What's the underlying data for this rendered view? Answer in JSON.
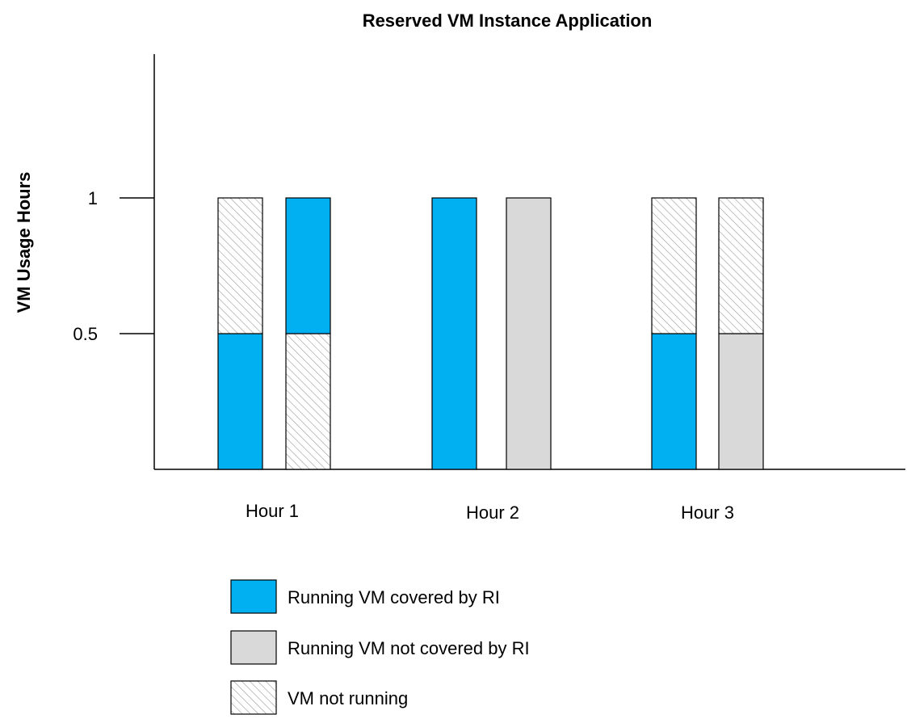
{
  "chart_data": {
    "type": "bar",
    "title": "Reserved VM Instance Application",
    "xlabel": "",
    "ylabel": "VM Usage Hours",
    "yticks": [
      1,
      0.5
    ],
    "ytick_labels": [
      "1",
      "0.5"
    ],
    "ylim": [
      0,
      1
    ],
    "categories": [
      "Hour 1",
      "Hour 2",
      "Hour 3"
    ],
    "states": {
      "covered": {
        "label": "Running VM covered by RI",
        "color": "#00B0F0",
        "pattern": "solid"
      },
      "uncovered": {
        "label": "Running VM not covered by RI",
        "color": "#D9D9D9",
        "pattern": "solid"
      },
      "not_running": {
        "label": "VM not running",
        "color": "#FFFFFF",
        "pattern": "hatch"
      }
    },
    "bars": [
      {
        "category": "Hour 1",
        "segments": [
          {
            "state": "covered",
            "value": 0.5
          },
          {
            "state": "not_running",
            "value": 0.5
          }
        ]
      },
      {
        "category": "Hour 1",
        "segments": [
          {
            "state": "not_running",
            "value": 0.5
          },
          {
            "state": "covered",
            "value": 0.5
          }
        ]
      },
      {
        "category": "Hour 2",
        "segments": [
          {
            "state": "covered",
            "value": 1
          }
        ]
      },
      {
        "category": "Hour 2",
        "segments": [
          {
            "state": "uncovered",
            "value": 1
          }
        ]
      },
      {
        "category": "Hour 3",
        "segments": [
          {
            "state": "covered",
            "value": 0.5
          },
          {
            "state": "not_running",
            "value": 0.5
          }
        ]
      },
      {
        "category": "Hour 3",
        "segments": [
          {
            "state": "uncovered",
            "value": 0.5
          },
          {
            "state": "not_running",
            "value": 0.5
          }
        ]
      }
    ],
    "legend": {
      "placement": "bottom",
      "order": [
        "covered",
        "uncovered",
        "not_running"
      ]
    },
    "grid": false
  }
}
